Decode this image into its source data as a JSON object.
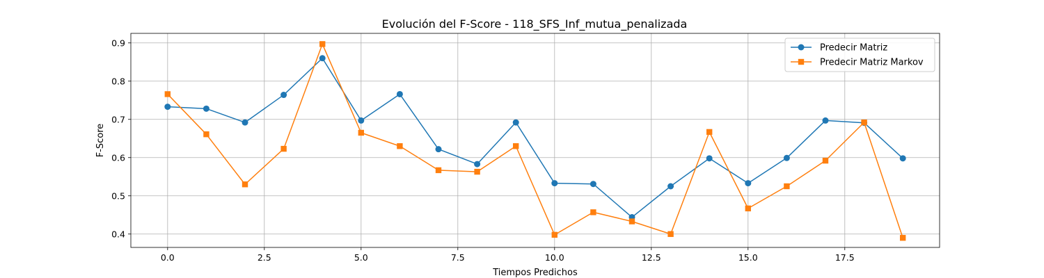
{
  "chart_data": {
    "type": "line",
    "title": "Evolución del F-Score - 118_SFS_Inf_mutua_penalizada",
    "xlabel": "Tiempos Predichos",
    "ylabel": "F-Score",
    "xlim": [
      -0.95,
      19.95
    ],
    "ylim": [
      0.365,
      0.925
    ],
    "xticks": [
      0.0,
      2.5,
      5.0,
      7.5,
      10.0,
      12.5,
      15.0,
      17.5
    ],
    "xtick_labels": [
      "0.0",
      "2.5",
      "5.0",
      "7.5",
      "10.0",
      "12.5",
      "15.0",
      "17.5"
    ],
    "yticks": [
      0.4,
      0.5,
      0.6,
      0.7,
      0.8,
      0.9
    ],
    "ytick_labels": [
      "0.4",
      "0.5",
      "0.6",
      "0.7",
      "0.8",
      "0.9"
    ],
    "grid": true,
    "legend_position": "top-right",
    "x": [
      0,
      1,
      2,
      3,
      4,
      5,
      6,
      7,
      8,
      9,
      10,
      11,
      12,
      13,
      14,
      15,
      16,
      17,
      18,
      19
    ],
    "series": [
      {
        "name": "Predecir Matriz",
        "color": "#1f77b4",
        "marker": "circle",
        "values": [
          0.733,
          0.728,
          0.692,
          0.764,
          0.86,
          0.697,
          0.766,
          0.622,
          0.583,
          0.692,
          0.533,
          0.531,
          0.444,
          0.525,
          0.598,
          0.533,
          0.599,
          0.697,
          0.691,
          0.598
        ]
      },
      {
        "name": "Predecir Matriz Markov",
        "color": "#ff7f0e",
        "marker": "square",
        "values": [
          0.766,
          0.661,
          0.53,
          0.623,
          0.897,
          0.665,
          0.63,
          0.567,
          0.563,
          0.63,
          0.398,
          0.457,
          0.433,
          0.4,
          0.667,
          0.467,
          0.525,
          0.592,
          0.692,
          0.39
        ]
      }
    ]
  }
}
